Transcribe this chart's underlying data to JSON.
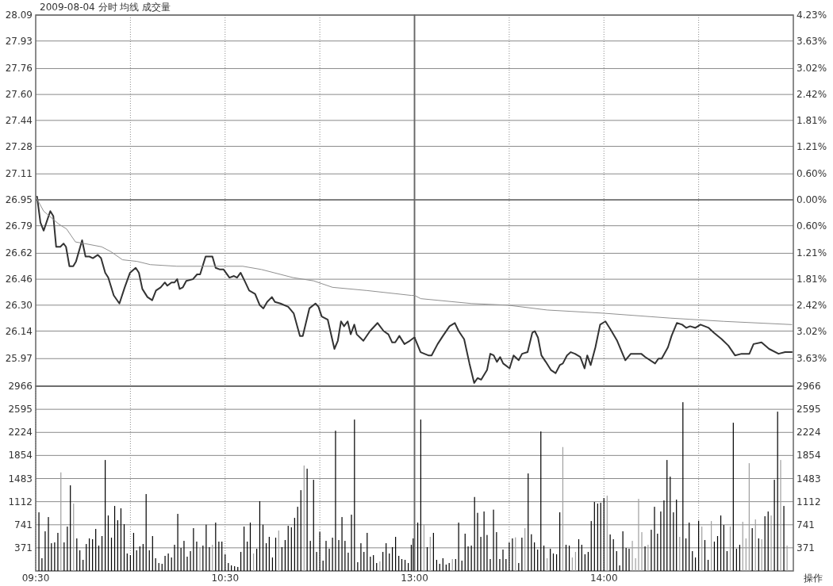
{
  "chart_data": [
    {
      "type": "line",
      "title": "2009-08-04 分时 均线 成交量",
      "xlim": [
        9.5,
        11.5
      ],
      "xticks": [
        10,
        10.5,
        11
      ],
      "ylim": [
        25.8,
        28.09
      ],
      "yticks": [
        28.09,
        27.93,
        27.76,
        {
          "value": 27.6,
          "label": "27.60"
        },
        27.44,
        27.28,
        27.11,
        26.95,
        26.79,
        26.62,
        26.46,
        {
          "value": 26.3,
          "label": "26.30"
        },
        26.14,
        25.97
      ],
      "grid": true,
      "tick_labels": "y",
      "ref_lines": [
        {
          "axis": "y",
          "value": 26.95,
          "color": "#808080"
        }
      ],
      "series": [
        {
          "color": "#333333",
          "x": [
            9.507,
            9.525,
            9.542,
            9.577,
            9.593,
            9.608,
            9.63,
            9.647,
            9.66,
            9.678,
            9.698,
            9.713,
            9.745,
            9.763,
            9.783,
            9.802,
            9.828,
            9.845,
            9.867,
            9.883,
            9.912,
            9.942,
            9.97,
            9.998,
            10.028,
            10.045,
            10.063,
            10.09,
            10.115,
            10.135,
            10.16,
            10.182,
            10.195,
            10.217,
            10.233,
            10.247,
            10.26,
            10.277,
            10.295,
            10.33,
            10.352,
            10.368,
            10.397,
            10.433,
            10.45,
            10.473,
            10.492,
            10.523,
            10.547,
            10.563,
            10.582,
            10.603,
            10.627,
            10.658,
            10.683,
            10.702,
            10.722,
            10.747,
            10.763,
            10.792,
            10.833,
            10.862,
            10.895,
            10.91,
            10.945,
            10.977,
            10.993,
            11.01,
            11.042,
            11.077,
            11.095,
            11.112,
            11.128,
            11.147,
            11.163,
            11.182,
            11.195,
            11.23,
            11.265,
            11.305,
            11.337,
            11.362,
            11.382,
            11.398,
            11.42,
            11.447,
            11.475,
            11.498,
            11.5
          ],
          "values": [
            26.97,
            26.81,
            26.76,
            26.88,
            26.85,
            26.66,
            26.66,
            26.68,
            26.66,
            26.54,
            26.54,
            26.57,
            26.7,
            26.6,
            26.6,
            26.59,
            26.61,
            26.59,
            26.5,
            26.47,
            26.36,
            26.31,
            26.41,
            26.5,
            26.53,
            26.5,
            26.4,
            26.35,
            26.33,
            26.39,
            26.41,
            26.44,
            26.42,
            26.44,
            26.44,
            26.46,
            26.4,
            26.41,
            26.45,
            26.46,
            26.49,
            26.49,
            26.6,
            26.6,
            26.53,
            26.52,
            26.52,
            26.47,
            26.48,
            26.47,
            26.5,
            26.45,
            26.39,
            26.37,
            26.3,
            26.28,
            26.32,
            26.35,
            26.32,
            26.31,
            26.29,
            26.25,
            26.11,
            26.11,
            26.28,
            26.31,
            26.29,
            26.23,
            26.21,
            26.03,
            26.08,
            26.2,
            26.17,
            26.2,
            26.12,
            26.18,
            26.12,
            26.08,
            26.14,
            26.19,
            26.14,
            26.12,
            26.07,
            26.07,
            26.11,
            26.06,
            26.08,
            26.1,
            26.1
          ]
        },
        {
          "color": "#909090",
          "x": [
            9.5,
            9.542,
            9.622,
            9.663,
            9.71,
            9.758,
            9.848,
            9.897,
            9.958,
            10.035,
            10.105,
            10.245,
            10.455,
            10.593,
            10.692,
            10.858,
            10.967,
            11.067,
            11.25,
            11.483,
            11.5
          ],
          "values": [
            26.97,
            26.88,
            26.8,
            26.77,
            26.69,
            26.68,
            26.66,
            26.63,
            26.58,
            26.57,
            26.55,
            26.54,
            26.54,
            26.54,
            26.52,
            26.47,
            26.45,
            26.41,
            26.39,
            26.36,
            26.36
          ]
        }
      ]
    },
    {
      "type": "line",
      "xlim": [
        13,
        15
      ],
      "xticks": [
        13.5,
        14,
        14.5
      ],
      "ylim": [
        25.8,
        28.09
      ],
      "yticks": [
        28.09,
        27.93,
        27.76,
        27.6,
        27.44,
        27.28,
        27.11,
        26.95,
        26.79,
        26.62,
        26.46,
        26.3,
        26.14,
        25.97
      ],
      "y2lim": [
        -4.27,
        4.23
      ],
      "y2ticks": [
        {
          "value": 4.23,
          "label": "4.23%"
        },
        {
          "value": 3.63,
          "label": "3.63%"
        },
        {
          "value": 3.02,
          "label": "3.02%"
        },
        {
          "value": 2.42,
          "label": "2.42%"
        },
        {
          "value": 1.81,
          "label": "1.81%"
        },
        {
          "value": 1.21,
          "label": "1.21%"
        },
        {
          "value": 0.6,
          "label": "0.60%"
        },
        {
          "value": 0,
          "label": "0.00%"
        },
        {
          "value": -0.6,
          "label": "0.60%"
        },
        {
          "value": -1.21,
          "label": "1.21%"
        },
        {
          "value": -1.81,
          "label": "1.81%"
        },
        {
          "value": -2.42,
          "label": "2.42%"
        },
        {
          "value": -3.02,
          "label": "3.02%"
        },
        {
          "value": -3.63,
          "label": "3.63%"
        }
      ],
      "grid": true,
      "tick_labels": false,
      "ref_lines": [
        {
          "axis": "y",
          "value": 26.95,
          "color": "#808080"
        }
      ],
      "series": [
        {
          "color": "#333333",
          "x": [
            13,
            13.032,
            13.052,
            13.073,
            13.09,
            13.122,
            13.15,
            13.185,
            13.213,
            13.233,
            13.262,
            13.29,
            13.315,
            13.333,
            13.352,
            13.383,
            13.4,
            13.418,
            13.435,
            13.452,
            13.468,
            13.502,
            13.523,
            13.55,
            13.568,
            13.597,
            13.622,
            13.635,
            13.652,
            13.67,
            13.693,
            13.72,
            13.745,
            13.767,
            13.783,
            13.805,
            13.825,
            13.847,
            13.875,
            13.898,
            13.912,
            13.93,
            13.955,
            13.98,
            14.008,
            14.035,
            14.07,
            14.113,
            14.142,
            14.197,
            14.218,
            14.27,
            14.288,
            14.305,
            14.338,
            14.357,
            14.385,
            14.413,
            14.435,
            14.455,
            14.483,
            14.51,
            14.553,
            14.58,
            14.622,
            14.657,
            14.692,
            14.727,
            14.768,
            14.79,
            14.832,
            14.872,
            14.922,
            14.957,
            14.992
          ],
          "values": [
            26.1,
            26.01,
            26.0,
            25.99,
            25.99,
            26.06,
            26.11,
            26.17,
            26.19,
            26.14,
            26.09,
            25.94,
            25.82,
            25.85,
            25.84,
            25.9,
            26.0,
            25.99,
            25.95,
            25.98,
            25.94,
            25.91,
            25.99,
            25.96,
            26.0,
            26.01,
            26.13,
            26.14,
            26.1,
            25.99,
            25.95,
            25.9,
            25.88,
            25.93,
            25.94,
            25.99,
            26.01,
            26.0,
            25.98,
            25.91,
            25.99,
            25.93,
            26.04,
            26.18,
            26.2,
            26.15,
            26.08,
            25.96,
            26.0,
            26.0,
            25.98,
            25.94,
            25.97,
            25.97,
            26.04,
            26.11,
            26.19,
            26.18,
            26.16,
            26.17,
            26.16,
            26.18,
            26.16,
            26.13,
            26.09,
            26.05,
            25.99,
            26.0,
            26.0,
            26.06,
            26.07,
            26.03,
            26.0,
            26.01,
            26.01
          ]
        },
        {
          "color": "#909090",
          "x": [
            13,
            13.033,
            13.3,
            13.492,
            13.7,
            14,
            14.35,
            14.633,
            14.992
          ],
          "values": [
            26.36,
            26.34,
            26.31,
            26.3,
            26.27,
            26.25,
            26.22,
            26.2,
            26.18
          ]
        }
      ]
    },
    {
      "type": "bar",
      "xlim": [
        9.5,
        11.5
      ],
      "xticks": [
        {
          "value": 9.5,
          "label": "09:30"
        },
        {
          "value": 10,
          "label": null
        },
        {
          "value": 10.5,
          "label": "10:30"
        },
        {
          "value": 11,
          "label": null
        }
      ],
      "ylim": [
        0,
        2966
      ],
      "yticks": [
        2966,
        2595,
        2224,
        1854,
        1483,
        1112,
        741,
        371
      ],
      "grid": true,
      "x": [
        9.517,
        9.533,
        9.55,
        9.567,
        9.583,
        9.6,
        9.617,
        9.633,
        9.65,
        9.667,
        9.683,
        9.7,
        9.717,
        9.733,
        9.75,
        9.767,
        9.783,
        9.8,
        9.817,
        9.833,
        9.85,
        9.867,
        9.883,
        9.9,
        9.917,
        9.933,
        9.95,
        9.967,
        9.983,
        10,
        10.017,
        10.033,
        10.05,
        10.067,
        10.083,
        10.1,
        10.117,
        10.133,
        10.15,
        10.167,
        10.183,
        10.2,
        10.217,
        10.233,
        10.25,
        10.267,
        10.283,
        10.3,
        10.317,
        10.333,
        10.35,
        10.367,
        10.383,
        10.4,
        10.417,
        10.433,
        10.45,
        10.467,
        10.483,
        10.5,
        10.517,
        10.533,
        10.55,
        10.567,
        10.583,
        10.6,
        10.617,
        10.633,
        10.65,
        10.667,
        10.683,
        10.7,
        10.717,
        10.733,
        10.75,
        10.767,
        10.783,
        10.8,
        10.817,
        10.833,
        10.85,
        10.867,
        10.883,
        10.9,
        10.917,
        10.933,
        10.95,
        10.967,
        10.983,
        11,
        11.017,
        11.033,
        11.05,
        11.067,
        11.083,
        11.1,
        11.117,
        11.133,
        11.15,
        11.167,
        11.183,
        11.2,
        11.217,
        11.233,
        11.25,
        11.267,
        11.283,
        11.3,
        11.317,
        11.333,
        11.35,
        11.367,
        11.383,
        11.4,
        11.417,
        11.433,
        11.45,
        11.467,
        11.483,
        11.493
      ],
      "values": [
        941,
        204,
        636,
        865,
        445,
        458,
        611,
        1582,
        458,
        712,
        1374,
        1081,
        522,
        331,
        178,
        432,
        522,
        509,
        674,
        407,
        560,
        1781,
        890,
        534,
        1043,
        814,
        1005,
        750,
        280,
        254,
        611,
        331,
        394,
        432,
        1234,
        331,
        560,
        204,
        127,
        114,
        242,
        280,
        216,
        420,
        916,
        369,
        483,
        229,
        318,
        687,
        471,
        382,
        407,
        742,
        382,
        420,
        776,
        471,
        471,
        267,
        127,
        89,
        76,
        64,
        305,
        712,
        471,
        776,
        280,
        356,
        1119,
        742,
        445,
        547,
        216,
        534,
        649,
        382,
        496,
        725,
        700,
        852,
        1030,
        1297,
        1692,
        1641,
        483,
        1463,
        305,
        628,
        165,
        483,
        356,
        534,
        2251,
        496,
        865,
        483,
        293,
        903,
        2430,
        140,
        445,
        305,
        611,
        229,
        254,
        127,
        153,
        305,
        445,
        280,
        382,
        547,
        242,
        191,
        178,
        127,
        420,
        522
      ],
      "colors": [
        "#000000",
        "#000000",
        "#000000",
        "#000000",
        "#000000",
        "#000000",
        "#000000",
        "#a0a0a0",
        "#000000",
        "#000000",
        "#000000",
        "#a0a0a0",
        "#000000",
        "#000000",
        "#000000",
        "#000000",
        "#000000",
        "#000000",
        "#000000",
        "#000000",
        "#000000",
        "#000000",
        "#000000",
        "#000000",
        "#000000",
        "#000000",
        "#000000",
        "#000000",
        "#000000",
        "#000000",
        "#000000",
        "#000000",
        "#000000",
        "#000000",
        "#000000",
        "#000000",
        "#000000",
        "#000000",
        "#000000",
        "#000000",
        "#000000",
        "#000000",
        "#000000",
        "#000000",
        "#000000",
        "#000000",
        "#000000",
        "#000000",
        "#000000",
        "#000000",
        "#000000",
        "#a0a0a0",
        "#000000",
        "#000000",
        "#000000",
        "#a0a0a0",
        "#000000",
        "#000000",
        "#000000",
        "#000000",
        "#000000",
        "#000000",
        "#000000",
        "#000000",
        "#000000",
        "#000000",
        "#000000",
        "#000000",
        "#a0a0a0",
        "#000000",
        "#000000",
        "#000000",
        "#000000",
        "#000000",
        "#000000",
        "#000000",
        "#a0a0a0",
        "#000000",
        "#000000",
        "#000000",
        "#000000",
        "#000000",
        "#000000",
        "#000000",
        "#a0a0a0",
        "#000000",
        "#000000",
        "#000000",
        "#000000",
        "#000000",
        "#000000",
        "#000000",
        "#000000",
        "#000000",
        "#000000",
        "#000000",
        "#000000",
        "#000000",
        "#000000",
        "#000000",
        "#000000",
        "#000000",
        "#000000",
        "#000000",
        "#000000",
        "#000000",
        "#000000",
        "#000000",
        "#a0a0a0",
        "#000000",
        "#000000",
        "#000000",
        "#000000",
        "#000000",
        "#000000",
        "#000000",
        "#000000",
        "#000000",
        "#000000",
        "#000000"
      ]
    },
    {
      "type": "bar",
      "xlim": [
        13,
        15
      ],
      "xticks": [
        {
          "value": 13,
          "label": "13:00"
        },
        {
          "value": 13.5,
          "label": null
        },
        {
          "value": 14,
          "label": "14:00"
        },
        {
          "value": 14.5,
          "label": null
        }
      ],
      "ylim": [
        0,
        2966
      ],
      "yticks": [
        2966,
        2595,
        2224,
        1854,
        1483,
        1112,
        741,
        371
      ],
      "grid": true,
      "annotations": [
        "操作"
      ],
      "x": [
        13.017,
        13.033,
        13.05,
        13.067,
        13.083,
        13.1,
        13.117,
        13.133,
        13.15,
        13.167,
        13.183,
        13.2,
        13.217,
        13.233,
        13.25,
        13.267,
        13.283,
        13.3,
        13.317,
        13.333,
        13.35,
        13.367,
        13.383,
        13.4,
        13.417,
        13.433,
        13.45,
        13.467,
        13.483,
        13.5,
        13.517,
        13.533,
        13.55,
        13.567,
        13.583,
        13.6,
        13.617,
        13.633,
        13.65,
        13.667,
        13.683,
        13.7,
        13.717,
        13.733,
        13.75,
        13.767,
        13.783,
        13.8,
        13.817,
        13.833,
        13.85,
        13.867,
        13.883,
        13.9,
        13.917,
        13.933,
        13.95,
        13.967,
        13.983,
        14,
        14.017,
        14.033,
        14.05,
        14.067,
        14.083,
        14.1,
        14.117,
        14.133,
        14.15,
        14.167,
        14.183,
        14.2,
        14.217,
        14.233,
        14.25,
        14.267,
        14.283,
        14.3,
        14.317,
        14.333,
        14.35,
        14.367,
        14.383,
        14.4,
        14.417,
        14.433,
        14.45,
        14.467,
        14.483,
        14.5,
        14.517,
        14.533,
        14.55,
        14.567,
        14.583,
        14.6,
        14.617,
        14.633,
        14.65,
        14.667,
        14.683,
        14.7,
        14.717,
        14.733,
        14.75,
        14.767,
        14.783,
        14.8,
        14.817,
        14.833,
        14.85,
        14.867,
        14.883,
        14.9,
        14.917,
        14.933,
        14.95,
        14.967
      ],
      "values": [
        776,
        2430,
        742,
        382,
        547,
        611,
        178,
        114,
        204,
        102,
        127,
        191,
        191,
        776,
        165,
        598,
        394,
        407,
        1187,
        933,
        547,
        954,
        577,
        191,
        984,
        623,
        191,
        343,
        191,
        458,
        522,
        539,
        127,
        534,
        687,
        1565,
        589,
        458,
        343,
        2239,
        407,
        204,
        356,
        280,
        267,
        941,
        1989,
        420,
        407,
        216,
        305,
        509,
        420,
        267,
        305,
        801,
        1107,
        1081,
        1094,
        1170,
        1208,
        585,
        509,
        318,
        89,
        636,
        369,
        356,
        483,
        204,
        1157,
        623,
        394,
        420,
        661,
        1030,
        598,
        954,
        1132,
        1781,
        1514,
        941,
        1145,
        547,
        2709,
        522,
        776,
        318,
        216,
        805,
        712,
        496,
        178,
        801,
        471,
        560,
        890,
        738,
        318,
        712,
        2379,
        356,
        420,
        789,
        522,
        1730,
        687,
        827,
        522,
        509,
        878,
        954,
        890,
        1463,
        2557,
        1781,
        1043,
        407
      ],
      "colors": [
        "#000000",
        "#000000",
        "#a0a0a0",
        "#000000",
        "#a0a0a0",
        "#000000",
        "#000000",
        "#000000",
        "#000000",
        "#000000",
        "#000000",
        "#a0a0a0",
        "#000000",
        "#000000",
        "#000000",
        "#000000",
        "#000000",
        "#000000",
        "#000000",
        "#000000",
        "#000000",
        "#000000",
        "#000000",
        "#000000",
        "#000000",
        "#000000",
        "#000000",
        "#000000",
        "#000000",
        "#000000",
        "#000000",
        "#a0a0a0",
        "#000000",
        "#000000",
        "#a0a0a0",
        "#000000",
        "#000000",
        "#000000",
        "#000000",
        "#000000",
        "#000000",
        "#a0a0a0",
        "#000000",
        "#000000",
        "#000000",
        "#000000",
        "#a0a0a0",
        "#000000",
        "#000000",
        "#a0a0a0",
        "#a0a0a0",
        "#000000",
        "#000000",
        "#000000",
        "#000000",
        "#000000",
        "#000000",
        "#000000",
        "#000000",
        "#000000",
        "#a0a0a0",
        "#000000",
        "#000000",
        "#000000",
        "#000000",
        "#000000",
        "#000000",
        "#000000",
        "#a0a0a0",
        "#a0a0a0",
        "#a0a0a0",
        "#a0a0a0",
        "#000000",
        "#a0a0a0",
        "#000000",
        "#000000",
        "#000000",
        "#000000",
        "#000000",
        "#000000",
        "#000000",
        "#000000",
        "#000000",
        "#a0a0a0",
        "#000000",
        "#000000",
        "#000000",
        "#000000",
        "#000000",
        "#000000",
        "#a0a0a0",
        "#000000",
        "#000000",
        "#a0a0a0",
        "#000000",
        "#000000",
        "#000000",
        "#000000",
        "#000000",
        "#a0a0a0",
        "#000000",
        "#000000",
        "#000000",
        "#a0a0a0",
        "#a0a0a0",
        "#a0a0a0",
        "#000000",
        "#a0a0a0",
        "#000000",
        "#a0a0a0",
        "#000000",
        "#000000",
        "#a0a0a0",
        "#000000",
        "#000000",
        "#a0a0a0",
        "#000000",
        "#a0a0a0"
      ]
    }
  ]
}
